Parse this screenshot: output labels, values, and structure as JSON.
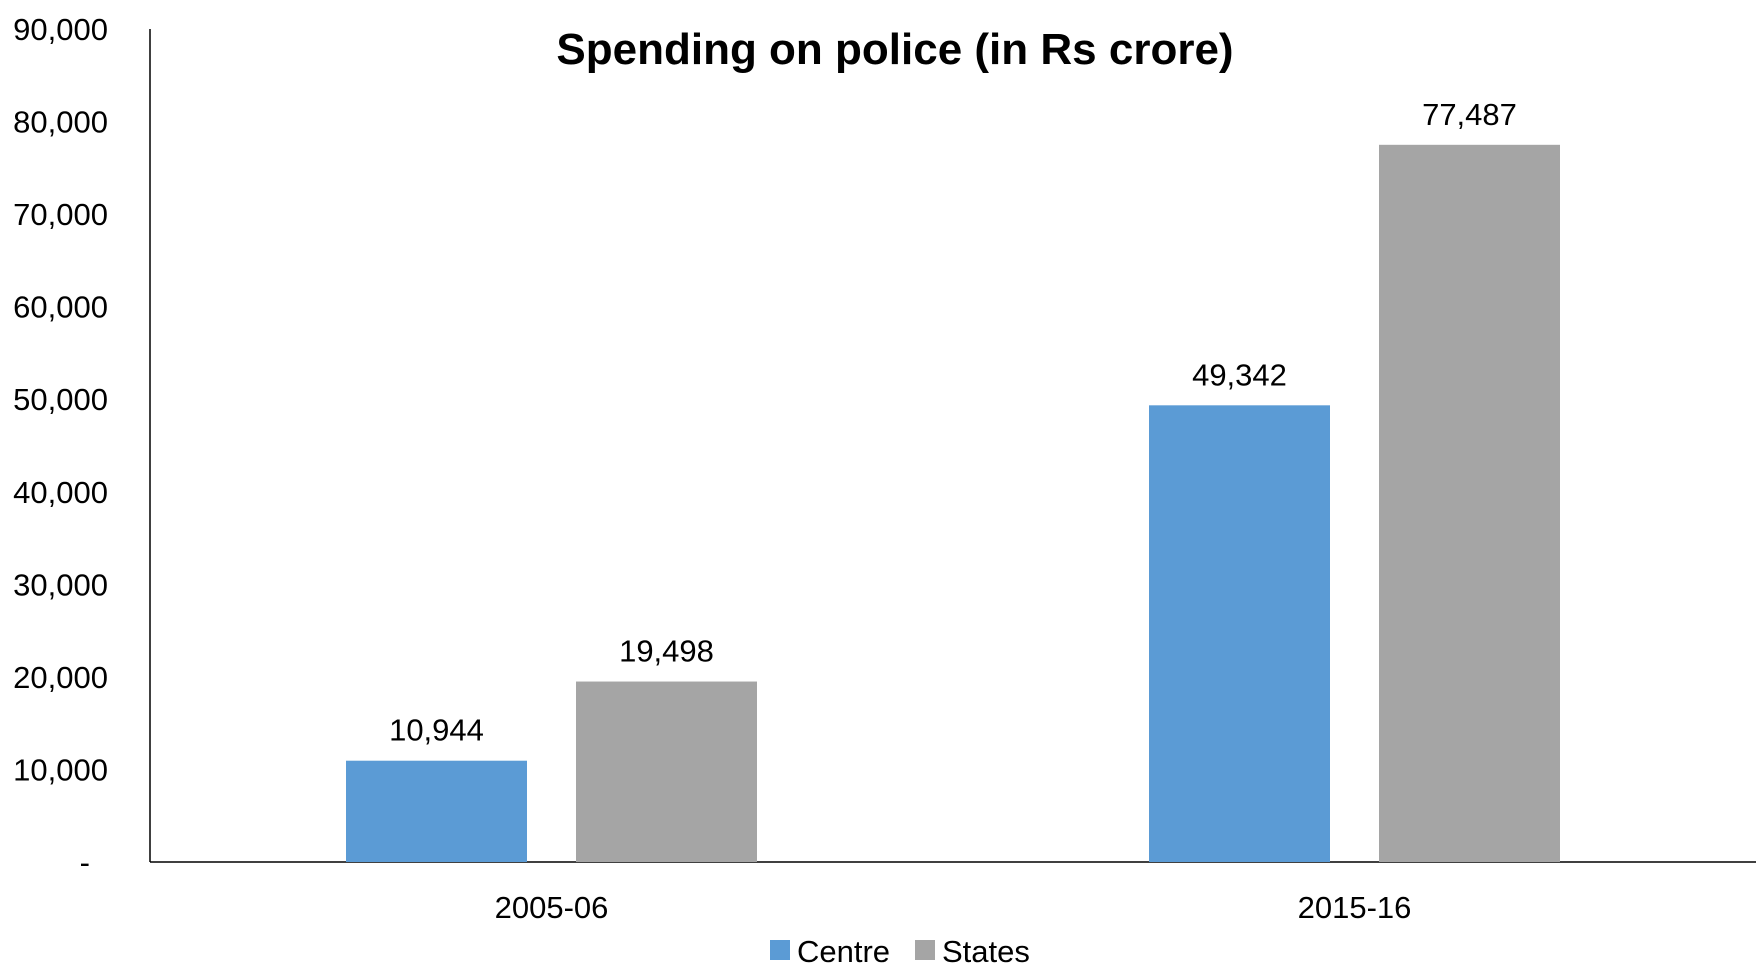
{
  "chart_data": {
    "type": "bar",
    "title": "Spending on police (in Rs crore)",
    "xlabel": "",
    "ylabel": "",
    "categories": [
      "2005-06",
      "2015-16"
    ],
    "series": [
      {
        "name": "Centre",
        "values": [
          10944,
          49342
        ],
        "labels": [
          "10,944",
          "49,342"
        ],
        "color": "#5b9bd5"
      },
      {
        "name": "States",
        "values": [
          19498,
          77487
        ],
        "labels": [
          "19,498",
          "77,487"
        ],
        "color": "#a5a5a5"
      }
    ],
    "ylim": [
      0,
      90000
    ],
    "ytick_values": [
      0,
      10000,
      20000,
      30000,
      40000,
      50000,
      60000,
      70000,
      80000,
      90000
    ],
    "ytick_labels": [
      "-",
      "10,000",
      "20,000",
      "30,000",
      "40,000",
      "50,000",
      "60,000",
      "70,000",
      "80,000",
      "90,000"
    ],
    "grid": false,
    "legend_position": "bottom"
  }
}
